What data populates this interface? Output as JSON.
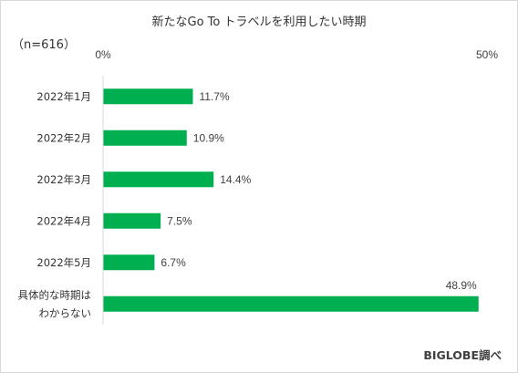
{
  "chart_data": {
    "type": "bar",
    "orientation": "horizontal",
    "title": "新たなGo To トラベルを利用したい時期",
    "sample_note": "（n=616）",
    "categories": [
      "2022年1月",
      "2022年2月",
      "2022年3月",
      "2022年4月",
      "2022年5月",
      "具体的な時期はわからない"
    ],
    "category_lines": [
      [
        "2022年1月"
      ],
      [
        "2022年2月"
      ],
      [
        "2022年3月"
      ],
      [
        "2022年4月"
      ],
      [
        "2022年5月"
      ],
      [
        "具体的な時期は",
        "わからない"
      ]
    ],
    "values": [
      11.7,
      10.9,
      14.4,
      7.5,
      6.7,
      48.9
    ],
    "data_labels": [
      "11.7%",
      "10.9%",
      "14.4%",
      "7.5%",
      "6.7%",
      "48.9%"
    ],
    "xlim": [
      0,
      50
    ],
    "tick_labels": [
      "0%",
      "50%"
    ],
    "grid": false,
    "colors": {
      "bar": "#00b050",
      "axis": "#d9d9d9",
      "text": "#333333"
    }
  },
  "source": "BIGLOBE調べ"
}
